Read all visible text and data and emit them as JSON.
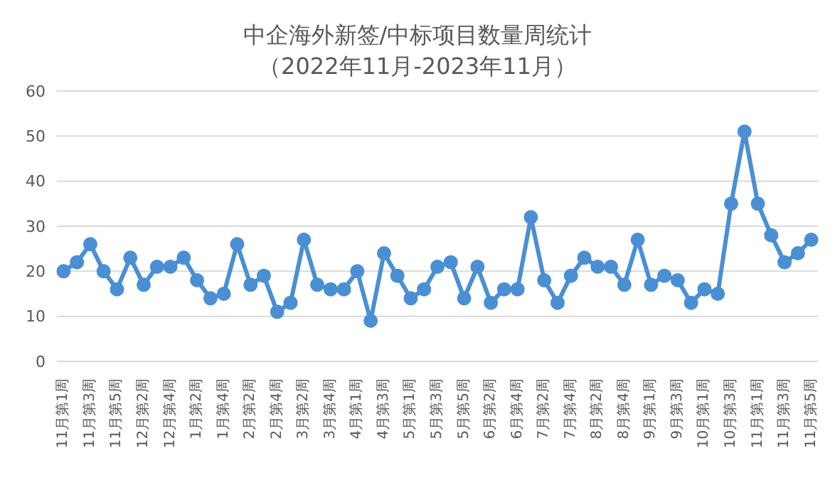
{
  "chart_data": {
    "type": "line",
    "title": "中企海外新签/中标项目数量周统计",
    "subtitle": "（2022年11月-2023年11月）",
    "categories": [
      "11月第1周",
      null,
      "11月第3周",
      null,
      "11月第5周",
      null,
      "12月第2周",
      null,
      "12月第4周",
      null,
      "1月第2周",
      null,
      "1月第4周",
      null,
      "2月第2周",
      null,
      "2月第4周",
      null,
      "3月第2周",
      null,
      "3月第4周",
      null,
      "4月第1周",
      null,
      "4月第3周",
      null,
      "5月第1周",
      null,
      "5月第3周",
      null,
      "5月第5周",
      null,
      "6月第2周",
      null,
      "6月第4周",
      null,
      "7月第2周",
      null,
      "7月第4周",
      null,
      "8月第2周",
      null,
      "8月第4周",
      null,
      "9月第1周",
      null,
      "9月第3周",
      null,
      "10月第1周",
      null,
      "10月第3周",
      null,
      "11月第1周",
      null,
      "11月第3周",
      null,
      "11月第5周"
    ],
    "series": [
      {
        "color": "#4a8fd4",
        "values": [
          20,
          22,
          26,
          20,
          16,
          23,
          17,
          21,
          21,
          23,
          18,
          14,
          15,
          26,
          17,
          19,
          11,
          13,
          27,
          17,
          16,
          16,
          20,
          9,
          24,
          19,
          14,
          16,
          21,
          22,
          14,
          21,
          13,
          16,
          16,
          32,
          18,
          13,
          19,
          23,
          21,
          21,
          17,
          27,
          17,
          19,
          18,
          13,
          16,
          15,
          35,
          51,
          35,
          28,
          22,
          24,
          27
        ]
      }
    ],
    "ylim": [
      0,
      60
    ],
    "yticks": [
      0,
      10,
      20,
      30,
      40,
      50,
      60
    ],
    "grid": "y",
    "marker": "circle",
    "line_style": "solid"
  }
}
